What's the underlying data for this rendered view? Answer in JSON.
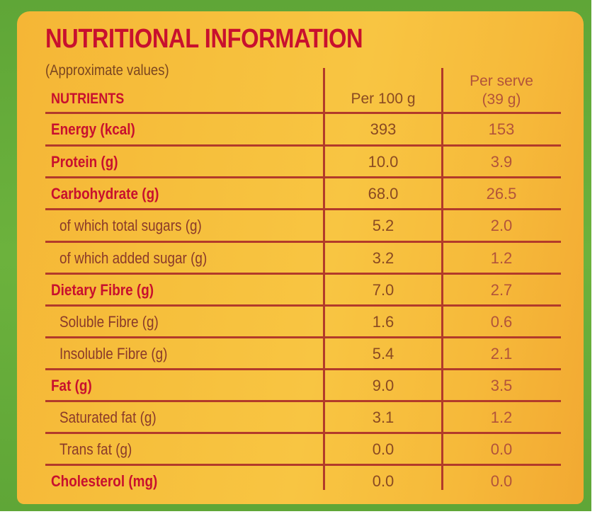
{
  "label": {
    "title": "NUTRITIONAL INFORMATION",
    "subtitle": "(Approximate values)",
    "headers": {
      "nutrients": "NUTRIENTS",
      "per_100g": "Per 100 g",
      "per_serve_line1": "Per serve",
      "per_serve_line2": "(39 g)"
    },
    "rows": [
      {
        "name": "Energy (kcal)",
        "per_100g": "393",
        "per_serve": "153"
      },
      {
        "name": "Protein (g)",
        "per_100g": "10.0",
        "per_serve": "3.9"
      },
      {
        "name": "Carbohydrate (g)",
        "per_100g": "68.0",
        "per_serve": "26.5"
      },
      {
        "name": "of which total sugars (g)",
        "per_100g": "5.2",
        "per_serve": "2.0"
      },
      {
        "name": "of which added sugar (g)",
        "per_100g": "3.2",
        "per_serve": "1.2"
      },
      {
        "name": "Dietary Fibre (g)",
        "per_100g": "7.0",
        "per_serve": "2.7"
      },
      {
        "name": "Soluble Fibre (g)",
        "per_100g": "1.6",
        "per_serve": "0.6"
      },
      {
        "name": "Insoluble Fibre (g)",
        "per_100g": "5.4",
        "per_serve": "2.1"
      },
      {
        "name": "Fat (g)",
        "per_100g": "9.0",
        "per_serve": "3.5"
      },
      {
        "name": "Saturated fat (g)",
        "per_100g": "3.1",
        "per_serve": "1.2"
      },
      {
        "name": "Trans fat (g)",
        "per_100g": "0.0",
        "per_serve": "0.0"
      },
      {
        "name": "Cholesterol (mg)",
        "per_100g": "0.0",
        "per_serve": "0.0"
      }
    ]
  },
  "colors": {
    "border_green": "#5fa637",
    "panel_yellow": "#f6bf3c",
    "title_red": "#c8102e",
    "rule_red": "#b23a2a"
  }
}
